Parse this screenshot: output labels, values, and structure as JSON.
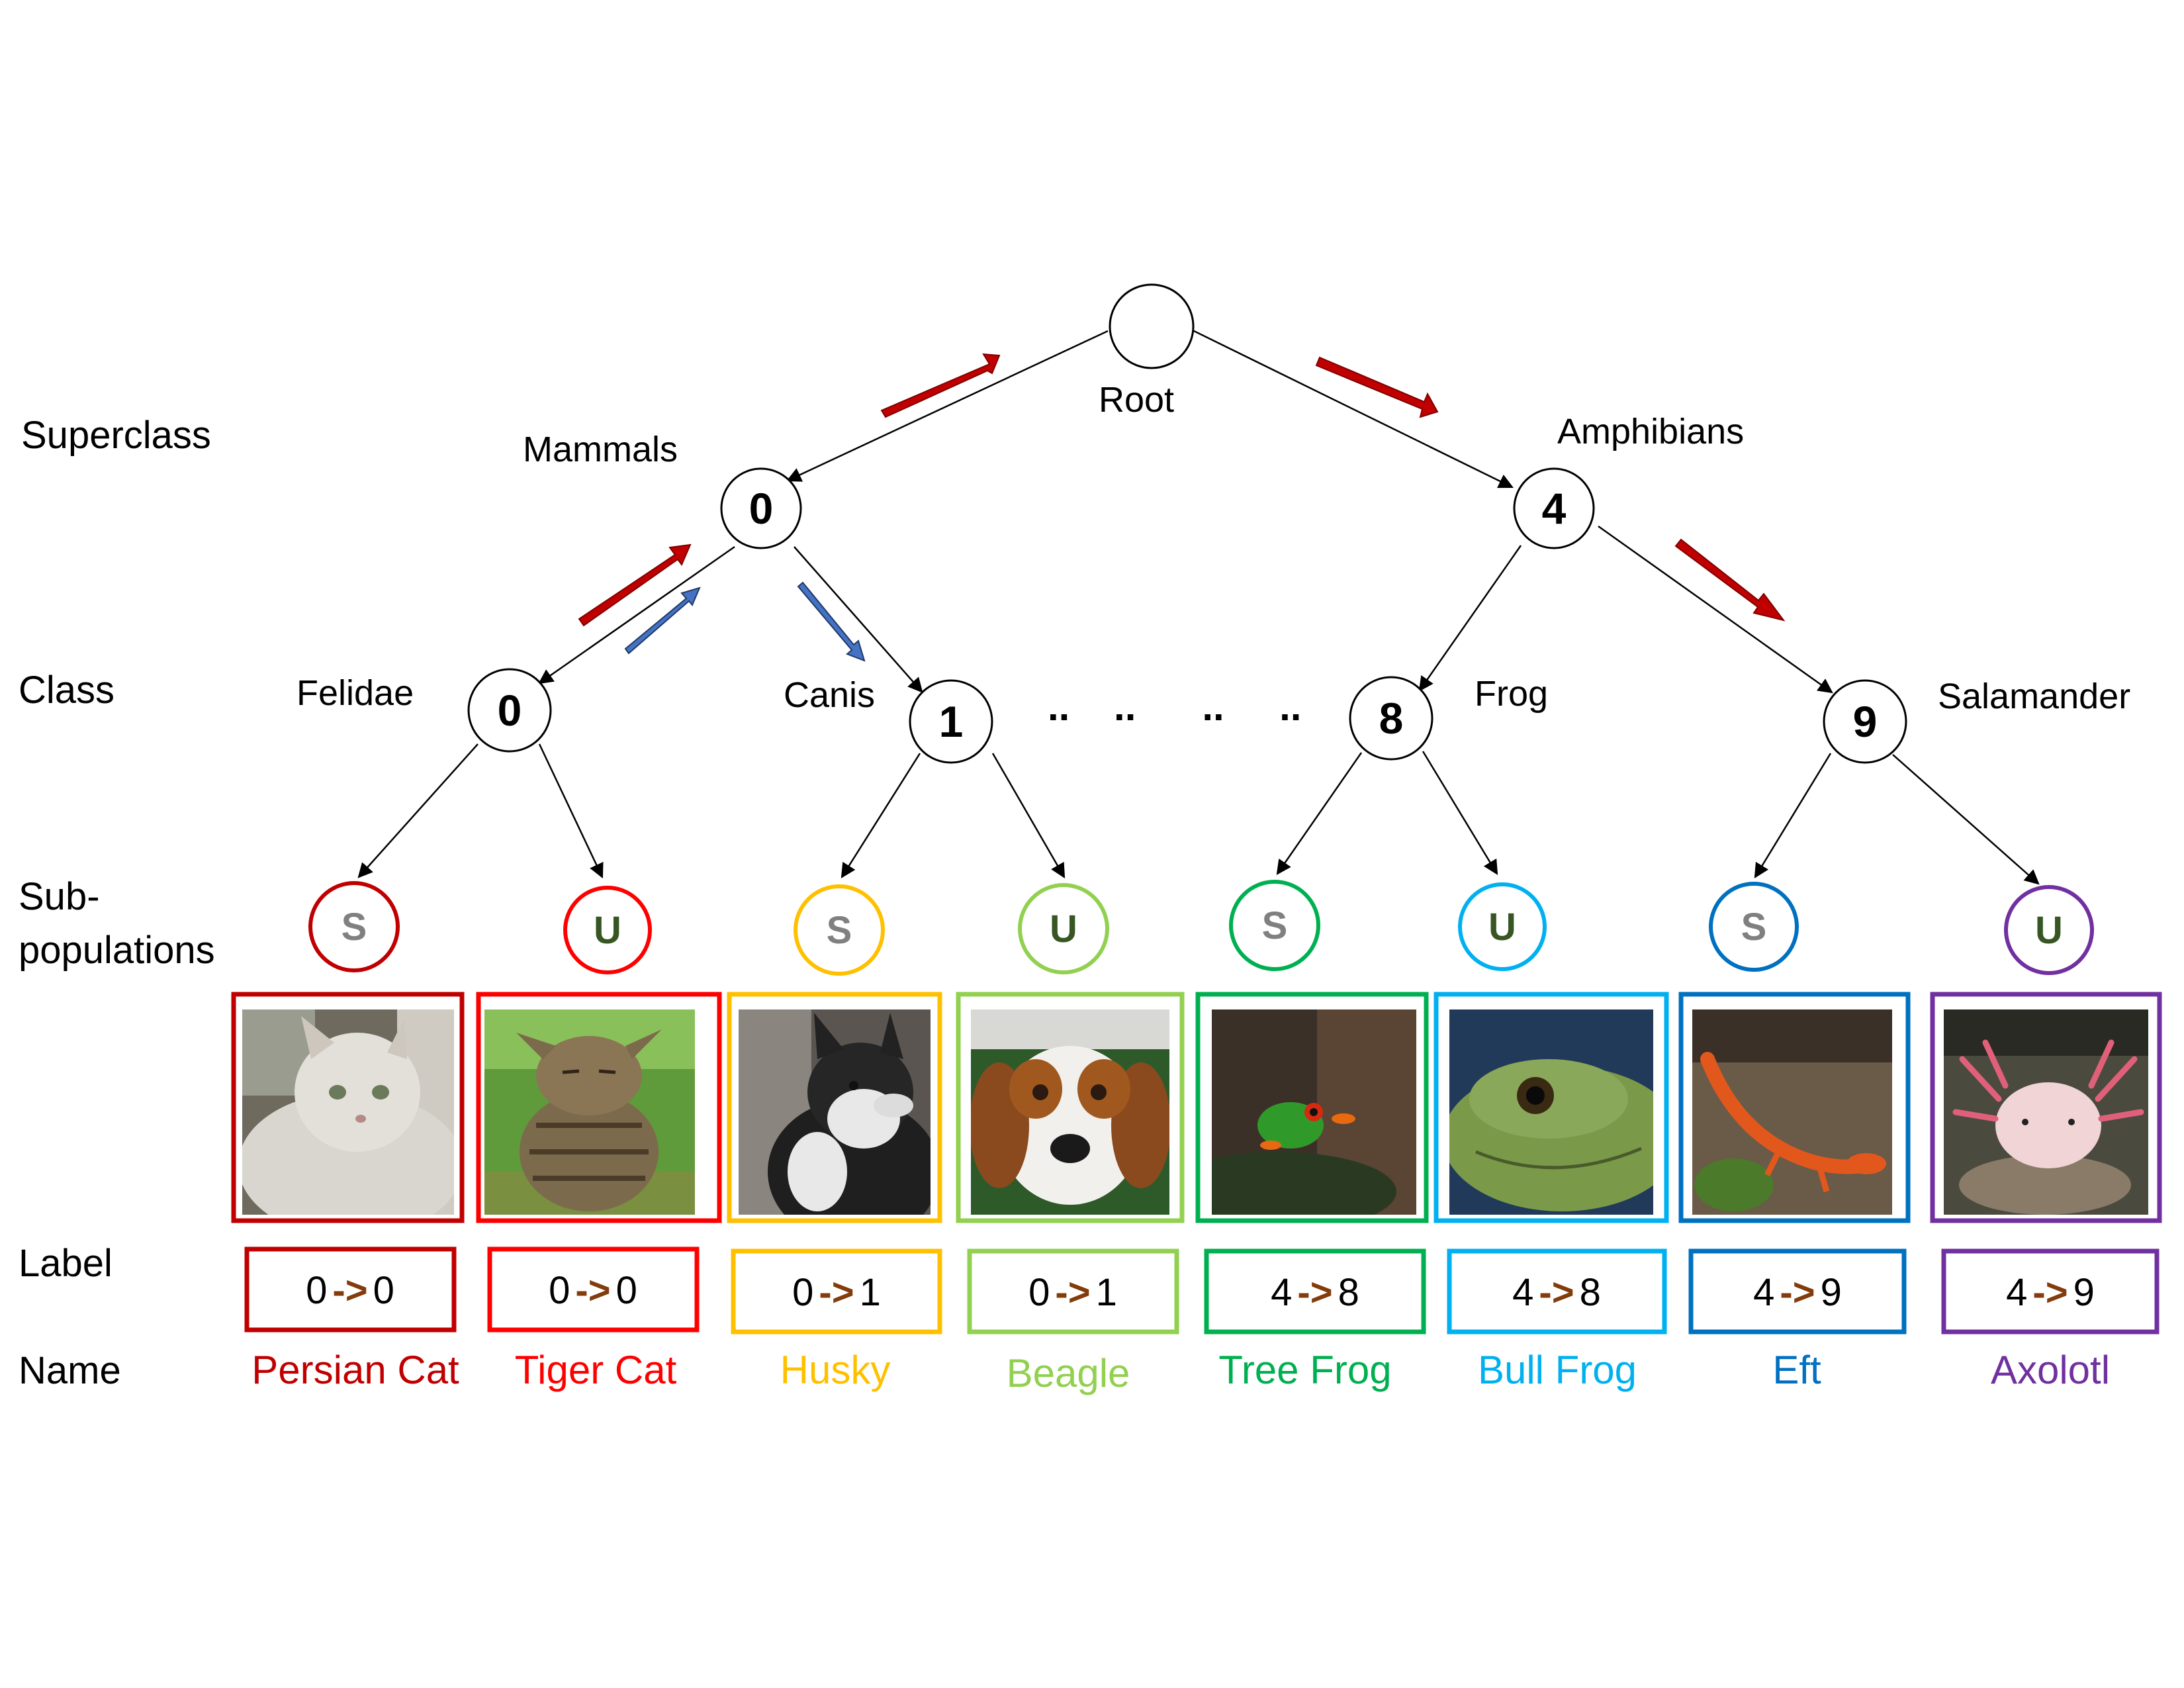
{
  "row_labels": {
    "superclass": "Superclass",
    "class": "Class",
    "sub_line1": "Sub-",
    "sub_line2": "populations",
    "label": "Label",
    "name": "Name"
  },
  "root": {
    "label": "Root"
  },
  "superclasses": [
    {
      "id": "0",
      "name": "Mammals"
    },
    {
      "id": "4",
      "name": "Amphibians"
    }
  ],
  "classes": [
    {
      "id": "0",
      "name": "Felidae"
    },
    {
      "id": "1",
      "name": "Canis"
    },
    {
      "id": "8",
      "name": "Frog"
    },
    {
      "id": "9",
      "name": "Salamander"
    }
  ],
  "dots": "..    ..      ..     ..",
  "subpopulations": [
    {
      "tag": "S",
      "name": "Persian Cat",
      "from": "0",
      "to": "0",
      "color": "#c00000",
      "tag_color": "#808080",
      "icon": "persian-cat-photo"
    },
    {
      "tag": "U",
      "name": "Tiger Cat",
      "from": "0",
      "to": "0",
      "color": "#ff0000",
      "tag_color": "#375623",
      "icon": "tiger-cat-photo"
    },
    {
      "tag": "S",
      "name": "Husky",
      "from": "0",
      "to": "1",
      "color": "#ffc000",
      "tag_color": "#808080",
      "icon": "husky-photo"
    },
    {
      "tag": "U",
      "name": "Beagle",
      "from": "0",
      "to": "1",
      "color": "#92d050",
      "tag_color": "#375623",
      "icon": "beagle-photo"
    },
    {
      "tag": "S",
      "name": "Tree Frog",
      "from": "4",
      "to": "8",
      "color": "#00b050",
      "tag_color": "#808080",
      "icon": "tree-frog-photo"
    },
    {
      "tag": "U",
      "name": "Bull Frog",
      "from": "4",
      "to": "8",
      "color": "#00b0f0",
      "tag_color": "#375623",
      "icon": "bull-frog-photo"
    },
    {
      "tag": "S",
      "name": "Eft",
      "from": "4",
      "to": "9",
      "color": "#0070c0",
      "tag_color": "#808080",
      "icon": "eft-photo"
    },
    {
      "tag": "U",
      "name": "Axolotl",
      "from": "4",
      "to": "9",
      "color": "#7030a0",
      "tag_color": "#375623",
      "icon": "axolotl-photo"
    }
  ],
  "label_arrow": "->",
  "colors": {
    "red_arrow": "#c00000",
    "blue_arrow": "#4472c4",
    "label_arrow": "#843c0c"
  }
}
